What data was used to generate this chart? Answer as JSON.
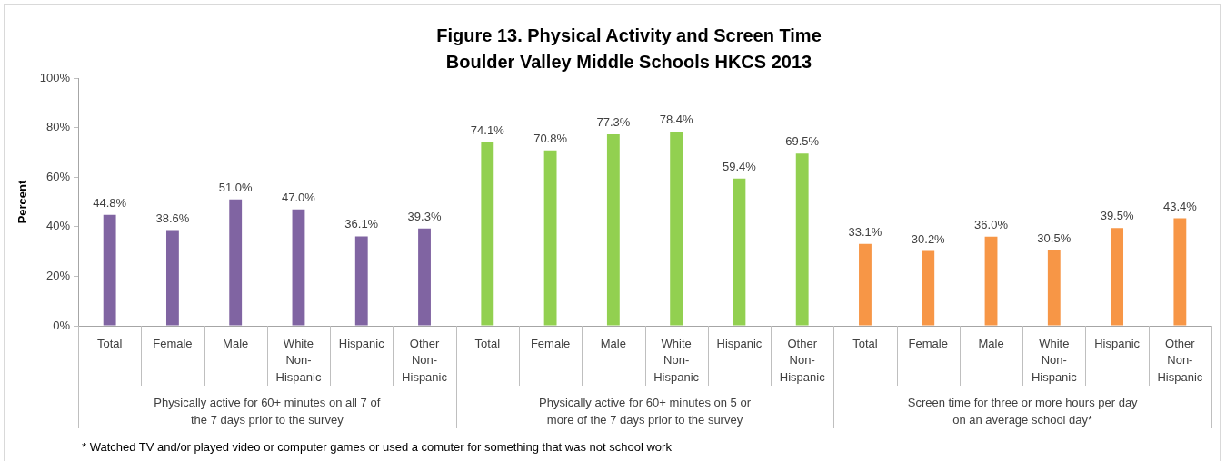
{
  "chart_data": {
    "type": "bar",
    "title": "Figure 13. Physical Activity and Screen Time",
    "subtitle": "Boulder Valley Middle Schools HKCS 2013",
    "ylabel": "Percent",
    "categories": [
      "Total",
      "Female",
      "Male",
      "White Non-Hispanic",
      "Hispanic",
      "Other Non-Hispanic",
      "Total",
      "Female",
      "Male",
      "White Non-Hispanic",
      "Hispanic",
      "Other Non-Hispanic",
      "Total",
      "Female",
      "Male",
      "White Non-Hispanic",
      "Hispanic",
      "Other Non-Hispanic"
    ],
    "series": [
      {
        "color": "#8064a2",
        "values": [
          44.8,
          38.6,
          51.0,
          47.0,
          36.1,
          39.3,
          null,
          null,
          null,
          null,
          null,
          null,
          null,
          null,
          null,
          null,
          null,
          null
        ],
        "value_labels": [
          "44.8%",
          "38.6%",
          "51.0%",
          "47.0%",
          "36.1%",
          "39.3%",
          null,
          null,
          null,
          null,
          null,
          null,
          null,
          null,
          null,
          null,
          null,
          null
        ]
      },
      {
        "color": "#92d050",
        "values": [
          null,
          null,
          null,
          null,
          null,
          null,
          74.1,
          70.8,
          77.3,
          78.4,
          59.4,
          69.5,
          null,
          null,
          null,
          null,
          null,
          null
        ],
        "value_labels": [
          null,
          null,
          null,
          null,
          null,
          null,
          "74.1%",
          "70.8%",
          "77.3%",
          "78.4%",
          "59.4%",
          "69.5%",
          null,
          null,
          null,
          null,
          null,
          null
        ]
      },
      {
        "color": "#f79646",
        "values": [
          null,
          null,
          null,
          null,
          null,
          null,
          null,
          null,
          null,
          null,
          null,
          null,
          33.1,
          30.2,
          36.0,
          30.5,
          39.5,
          43.4
        ],
        "value_labels": [
          null,
          null,
          null,
          null,
          null,
          null,
          null,
          null,
          null,
          null,
          null,
          null,
          "33.1%",
          "30.2%",
          "36.0%",
          "30.5%",
          "39.5%",
          "43.4%"
        ]
      }
    ],
    "ylim": [
      0,
      100
    ],
    "yticks": [
      {
        "value": 0,
        "label": "0%"
      },
      {
        "value": 20,
        "label": "20%"
      },
      {
        "value": 40,
        "label": "40%"
      },
      {
        "value": 60,
        "label": "60%"
      },
      {
        "value": 80,
        "label": "80%"
      },
      {
        "value": 100,
        "label": "100%"
      }
    ],
    "annotations": [
      "Physically active for 60+ minutes on all 7 of the 7 days prior to the survey",
      "Physically active for 60+ minutes on 5 or more of the 7 days prior to the survey",
      "Screen time for three or more hours per day on an average school day*",
      "* Watched TV and/or played video or computer games or used a comuter for something that was not school work"
    ]
  }
}
